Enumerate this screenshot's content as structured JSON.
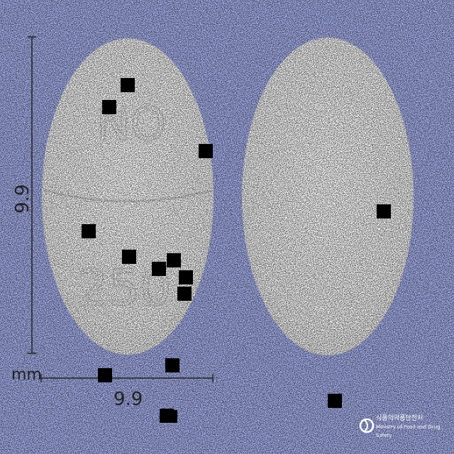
{
  "measurements": {
    "height_value": "9.9",
    "width_value": "9.9",
    "unit": "mm"
  },
  "imprint": {
    "top": "ON",
    "bottom": "250"
  },
  "logo": {
    "name_ko": "식품의약품안전처",
    "name_en": "Ministry of Food and Drug Safety"
  },
  "colors": {
    "background": "#a6b0ec",
    "tablet": "#f4f4f4",
    "dimension_line": "#222222"
  },
  "noise_squares": 15
}
